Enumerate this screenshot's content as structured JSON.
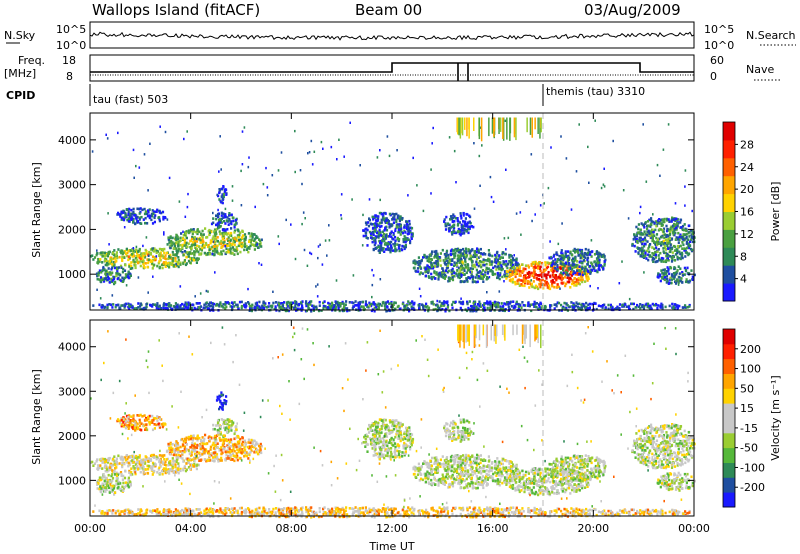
{
  "header": {
    "station": "Wallops Island (fitACF)",
    "beam": "Beam 00",
    "date": "03/Aug/2009"
  },
  "top_panels": {
    "nsky_label": "N.Sky",
    "nsearch_label": "N.Search",
    "nsky_ticks": [
      "10^5",
      "10^0"
    ],
    "nsearch_ticks": [
      "10^5",
      "10^0"
    ],
    "freq_label_line1": "Freq.",
    "freq_label_line2": "[MHz]",
    "freq_ticks": [
      "18",
      "8"
    ],
    "nave_label": "Nave",
    "nave_ticks": [
      "60",
      "0"
    ],
    "cpid_label": "CPID",
    "cpid_segments": [
      {
        "label": "tau (fast) 503",
        "start_hour": 0
      },
      {
        "label": "themis (tau) 3310",
        "start_hour": 18.0
      }
    ]
  },
  "chart_data": [
    {
      "type": "heatmap",
      "name": "power",
      "ylabel": "Slant Range [km]",
      "xlabel": "",
      "xlim": [
        0,
        24
      ],
      "ylim": [
        200,
        4600
      ],
      "yticks": [
        "1000",
        "2000",
        "3000",
        "4000"
      ],
      "colorbar": {
        "label": "Power [dB]",
        "ticks": [
          "4",
          "8",
          "12",
          "16",
          "20",
          "24",
          "28"
        ],
        "colors": [
          "#1a1aff",
          "#1f4fa0",
          "#2e8a57",
          "#4aa040",
          "#9acd32",
          "#ffd200",
          "#ffa500",
          "#ff6000",
          "#ff2000",
          "#e00000"
        ]
      },
      "regions": [
        {
          "t0": 0.0,
          "t1": 4.3,
          "r0": 1150,
          "r1": 1600,
          "level": 0.55
        },
        {
          "t0": 0.2,
          "t1": 1.6,
          "r0": 800,
          "r1": 1200,
          "level": 0.3
        },
        {
          "t0": 1.0,
          "t1": 3.0,
          "r0": 2150,
          "r1": 2500,
          "level": 0.15
        },
        {
          "t0": 3.0,
          "t1": 6.8,
          "r0": 1450,
          "r1": 2050,
          "level": 0.5
        },
        {
          "t0": 4.8,
          "t1": 5.8,
          "r0": 2000,
          "r1": 2400,
          "level": 0.2
        },
        {
          "t0": 5.0,
          "t1": 5.4,
          "r0": 2600,
          "r1": 3000,
          "level": 0.15
        },
        {
          "t0": 10.8,
          "t1": 12.8,
          "r0": 1500,
          "r1": 2400,
          "level": 0.2
        },
        {
          "t0": 12.8,
          "t1": 17.0,
          "r0": 850,
          "r1": 1600,
          "level": 0.3
        },
        {
          "t0": 14.0,
          "t1": 15.2,
          "r0": 1900,
          "r1": 2400,
          "level": 0.15
        },
        {
          "t0": 16.5,
          "t1": 19.8,
          "r0": 700,
          "r1": 1300,
          "level": 0.92
        },
        {
          "t0": 18.2,
          "t1": 20.5,
          "r0": 1000,
          "r1": 1600,
          "level": 0.25
        },
        {
          "t0": 21.5,
          "t1": 24.0,
          "r0": 1300,
          "r1": 2300,
          "level": 0.3
        },
        {
          "t0": 22.5,
          "t1": 24.0,
          "r0": 800,
          "r1": 1200,
          "level": 0.25
        },
        {
          "t0": 0.0,
          "t1": 24.0,
          "r0": 200,
          "r1": 420,
          "level": 0.2
        }
      ]
    },
    {
      "type": "heatmap",
      "name": "velocity",
      "ylabel": "Slant Range [km]",
      "xlabel": "Time UT",
      "xlim": [
        0,
        24
      ],
      "ylim": [
        200,
        4600
      ],
      "xticks": [
        "00:00",
        "04:00",
        "08:00",
        "12:00",
        "16:00",
        "20:00",
        "00:00"
      ],
      "yticks": [
        "1000",
        "2000",
        "3000",
        "4000"
      ],
      "colorbar": {
        "label": "Velocity [m s⁻¹]",
        "ticks": [
          "200",
          "100",
          "50",
          "15",
          "-15",
          "-50",
          "-100",
          "-200"
        ],
        "colors": [
          "#1a1aff",
          "#1f4fa0",
          "#2e8a57",
          "#55b83a",
          "#9acd32",
          "#c8c8c8",
          "#c8c8c8",
          "#ffd200",
          "#ffa500",
          "#ff6000",
          "#ff2000",
          "#e00000"
        ]
      },
      "regions": [
        {
          "t0": 0.0,
          "t1": 4.3,
          "r0": 1150,
          "r1": 1600,
          "vel": 0.55
        },
        {
          "t0": 0.2,
          "t1": 1.6,
          "r0": 700,
          "r1": 1200,
          "vel": 0.45
        },
        {
          "t0": 1.0,
          "t1": 3.0,
          "r0": 2150,
          "r1": 2500,
          "vel": 0.7
        },
        {
          "t0": 3.0,
          "t1": 6.8,
          "r0": 1450,
          "r1": 2050,
          "vel": 0.65
        },
        {
          "t0": 4.8,
          "t1": 5.8,
          "r0": 2000,
          "r1": 2400,
          "vel": 0.45
        },
        {
          "t0": 5.0,
          "t1": 5.4,
          "r0": 2600,
          "r1": 3000,
          "vel": 0.05
        },
        {
          "t0": 10.8,
          "t1": 12.8,
          "r0": 1500,
          "r1": 2400,
          "vel": 0.45
        },
        {
          "t0": 12.8,
          "t1": 17.0,
          "r0": 850,
          "r1": 1600,
          "vel": 0.45
        },
        {
          "t0": 14.0,
          "t1": 15.2,
          "r0": 1900,
          "r1": 2400,
          "vel": 0.45
        },
        {
          "t0": 16.5,
          "t1": 19.8,
          "r0": 700,
          "r1": 1300,
          "vel": 0.45
        },
        {
          "t0": 18.2,
          "t1": 20.5,
          "r0": 1000,
          "r1": 1600,
          "vel": 0.45
        },
        {
          "t0": 21.5,
          "t1": 24.0,
          "r0": 1300,
          "r1": 2300,
          "vel": 0.45
        },
        {
          "t0": 22.5,
          "t1": 24.0,
          "r0": 800,
          "r1": 1200,
          "vel": 0.45
        },
        {
          "t0": 0.0,
          "t1": 24.0,
          "r0": 200,
          "r1": 420,
          "vel": 0.62
        }
      ]
    }
  ]
}
